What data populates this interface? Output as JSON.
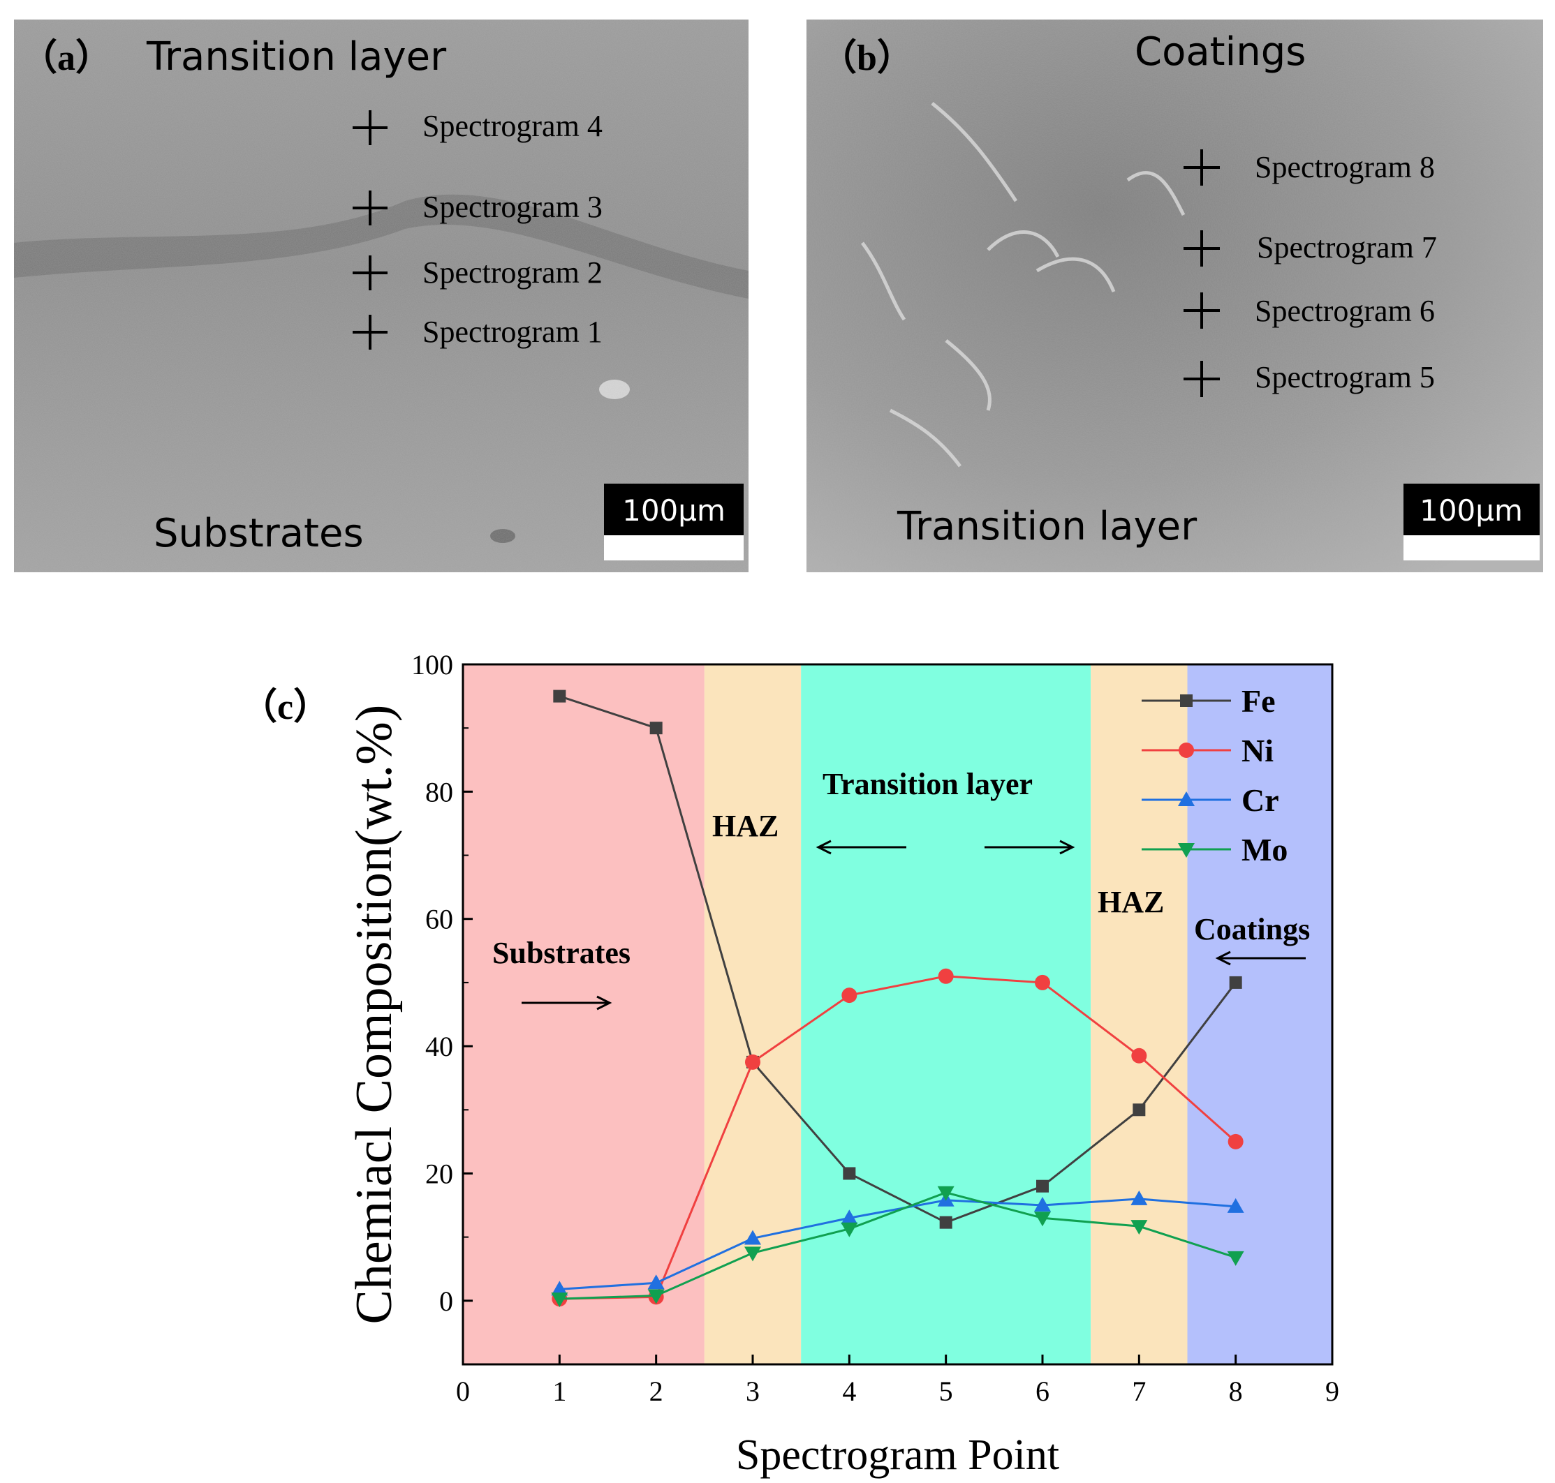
{
  "panel_a": {
    "label": "（a）",
    "top_text": "Transition layer",
    "bottom_text": "Substrates",
    "scale_bar": "100μm",
    "markers": [
      "Spectrogram 4",
      "Spectrogram 3",
      "Spectrogram 2",
      "Spectrogram 1"
    ]
  },
  "panel_b": {
    "label": "（b）",
    "top_text": "Coatings",
    "bottom_text": "Transition layer",
    "scale_bar": "100μm",
    "markers": [
      "Spectrogram 8",
      "Spectrogram 7",
      "Spectrogram 6",
      "Spectrogram 5"
    ]
  },
  "chart_data": {
    "type": "line",
    "panel_label": "（c）",
    "xlabel": "Spectrogram Point",
    "ylabel": "Chemiacl Composition(wt.%)",
    "xlim": [
      0,
      9
    ],
    "ylim": [
      -10,
      100
    ],
    "xticks": [
      0,
      1,
      2,
      3,
      4,
      5,
      6,
      7,
      8,
      9
    ],
    "yticks": [
      0,
      20,
      40,
      60,
      80,
      100
    ],
    "grid": false,
    "legend_position": "top-right",
    "x": [
      1,
      2,
      3,
      4,
      5,
      6,
      7,
      8
    ],
    "series": [
      {
        "name": "Fe",
        "color": "#404040",
        "marker": "square",
        "values": [
          95,
          90,
          37.5,
          20,
          12.3,
          18,
          30,
          50
        ]
      },
      {
        "name": "Ni",
        "color": "#f04040",
        "marker": "circle",
        "values": [
          0.3,
          0.6,
          37.5,
          48,
          51,
          50,
          38.5,
          25
        ]
      },
      {
        "name": "Cr",
        "color": "#2070e0",
        "marker": "triangle-up",
        "values": [
          1.8,
          2.8,
          9.8,
          13,
          15.8,
          15,
          16,
          14.8
        ]
      },
      {
        "name": "Mo",
        "color": "#10a050",
        "marker": "triangle-down",
        "values": [
          0.3,
          0.8,
          7.5,
          11.3,
          17,
          13,
          11.7,
          6.8
        ]
      }
    ],
    "regions": [
      {
        "from": 0,
        "to": 2.5,
        "color": "#fcc0c0"
      },
      {
        "from": 2.5,
        "to": 3.5,
        "color": "#fbe4bc"
      },
      {
        "from": 3.5,
        "to": 6.5,
        "color": "#80ffe0"
      },
      {
        "from": 6.5,
        "to": 7.5,
        "color": "#fbe4bc"
      },
      {
        "from": 7.5,
        "to": 9,
        "color": "#b4c0fc"
      }
    ],
    "annotations": [
      {
        "text": "Substrates"
      },
      {
        "text": "HAZ"
      },
      {
        "text": "Transition layer"
      },
      {
        "text": "HAZ"
      },
      {
        "text": "Coatings"
      }
    ]
  }
}
